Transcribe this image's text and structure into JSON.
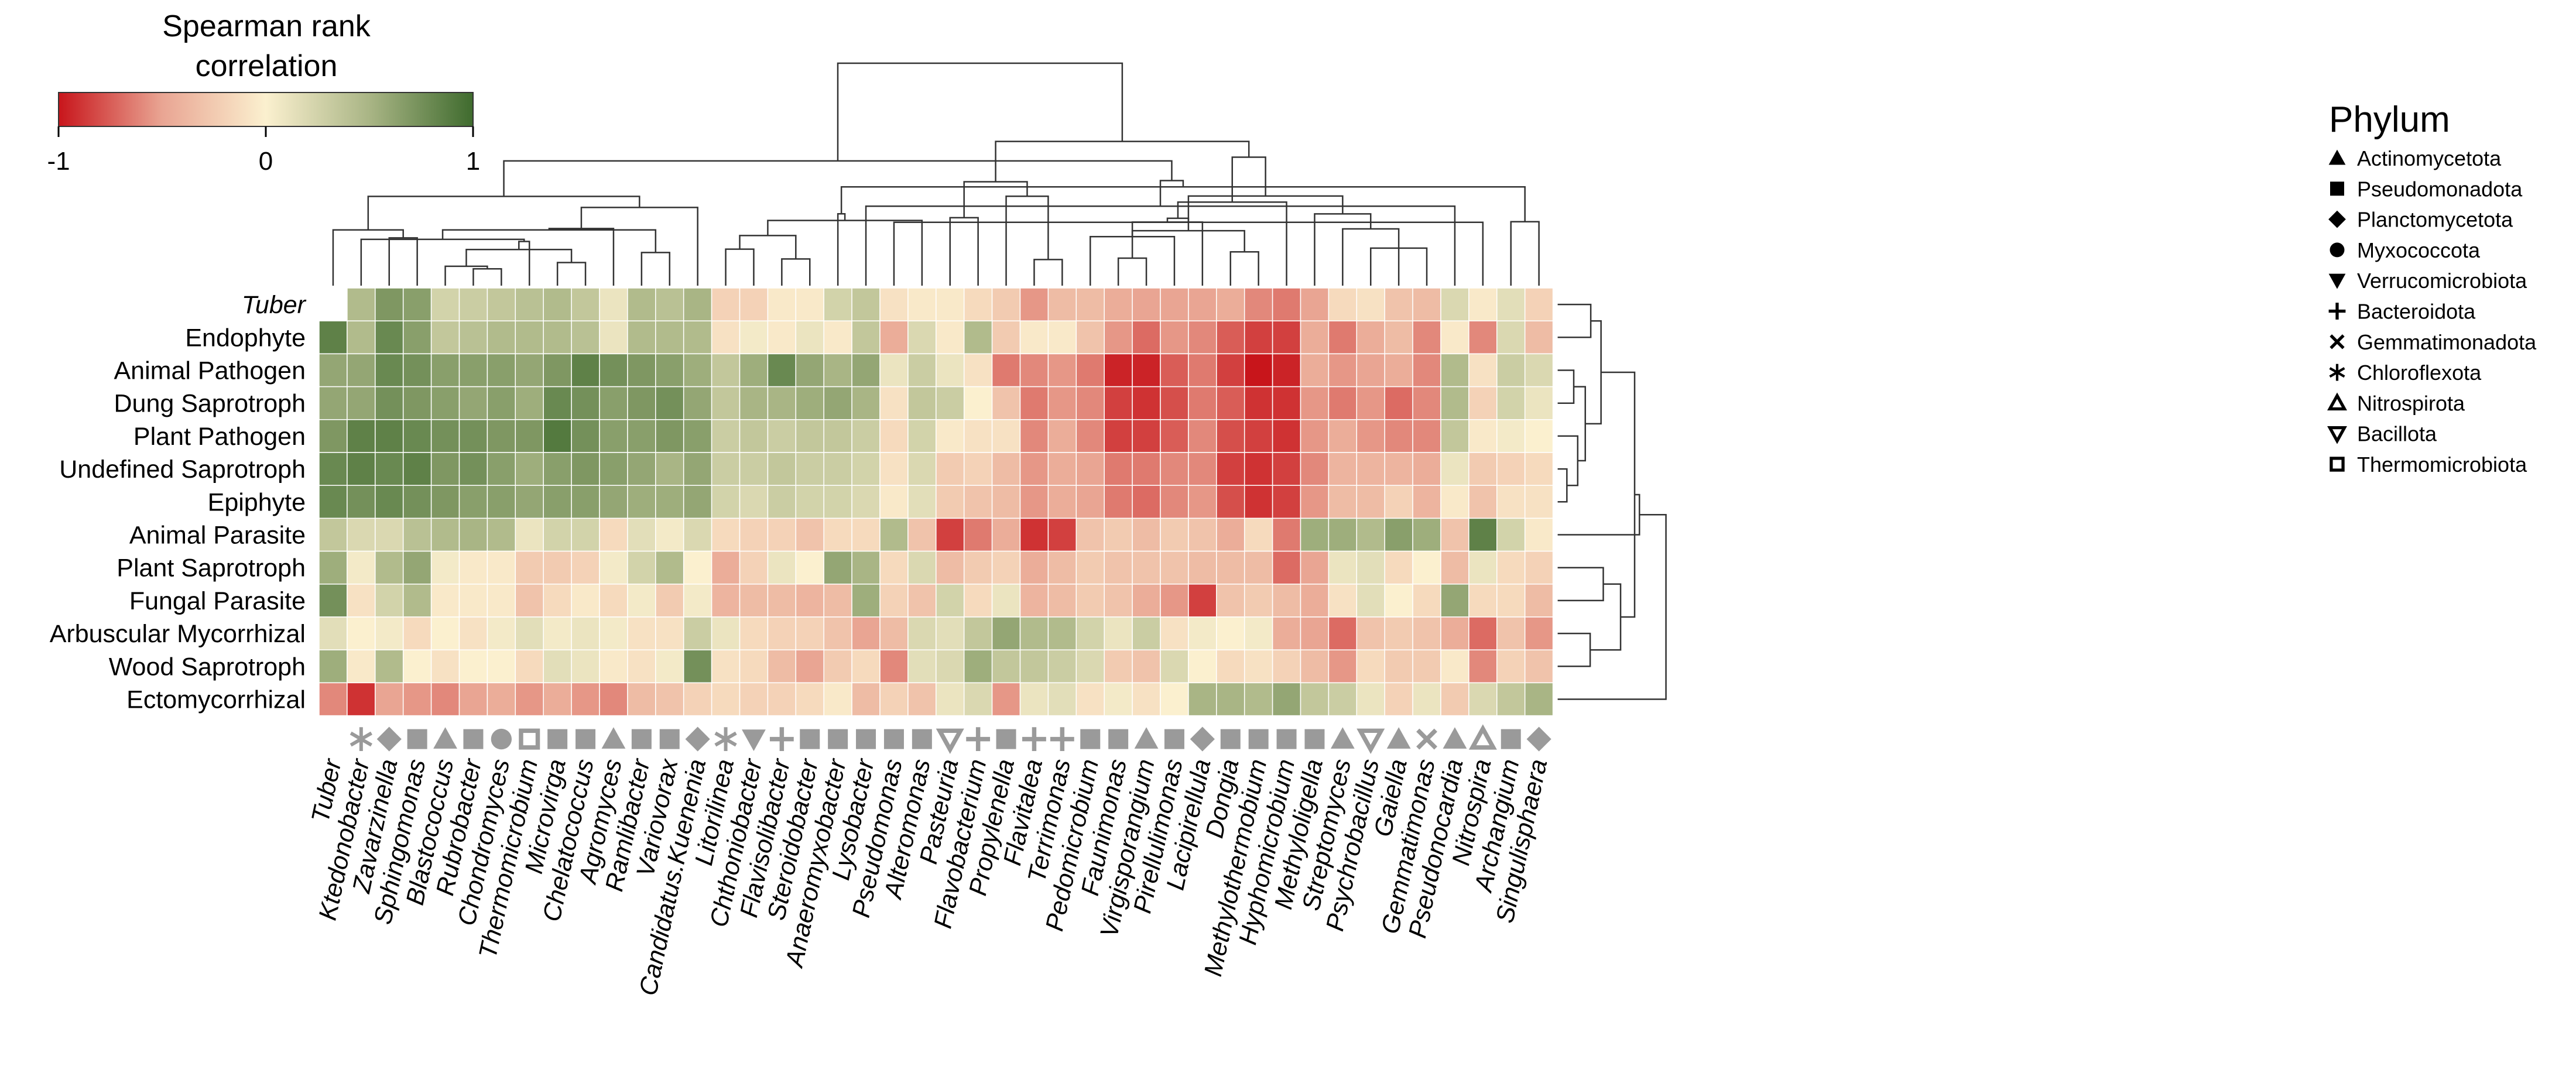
{
  "chart_data": {
    "type": "heatmap",
    "color_legend": {
      "title_line1": "Spearman rank",
      "title_line2": "correlation",
      "min_label": "-1",
      "mid_label": "0",
      "max_label": "1",
      "range": [
        -1,
        1
      ],
      "stops": [
        "#c8151b",
        "#e9a593",
        "#fbf0cf",
        "#a9b585",
        "#3f6b2e"
      ]
    },
    "phylum_legend": {
      "title": "Phylum",
      "entries": [
        {
          "symbol": "triangle-up",
          "label": "Actinomycetota"
        },
        {
          "symbol": "square",
          "label": "Pseudomonadota"
        },
        {
          "symbol": "diamond",
          "label": "Planctomycetota"
        },
        {
          "symbol": "circle",
          "label": "Myxococcota"
        },
        {
          "symbol": "triangle-down",
          "label": "Verrucomicrobiota"
        },
        {
          "symbol": "plus",
          "label": "Bacteroidota"
        },
        {
          "symbol": "cross",
          "label": "Gemmatimonadota"
        },
        {
          "symbol": "asterisk",
          "label": "Chloroflexota"
        },
        {
          "symbol": "triangle-up-open",
          "label": "Nitrospirota"
        },
        {
          "symbol": "triangle-down-open",
          "label": "Bacillota"
        },
        {
          "symbol": "square-open",
          "label": "Thermomicrobiota"
        }
      ]
    },
    "rows": [
      "Tuber",
      "Endophyte",
      "Animal Pathogen",
      "Dung Saprotroph",
      "Plant Pathogen",
      "Undefined Saprotroph",
      "Epiphyte",
      "Animal Parasite",
      "Plant Saprotroph",
      "Fungal Parasite",
      "Arbuscular Mycorrhizal",
      "Wood Saprotroph",
      "Ectomycorrhizal"
    ],
    "italic_rows": [
      "Tuber"
    ],
    "columns": [
      "Tuber",
      "Ktedonobacter",
      "Zavarzinella",
      "Sphingomonas",
      "Blastococcus",
      "Rubrobacter",
      "Chondromyces",
      "Thermomicrobium",
      "Microvirga",
      "Chelatococcus",
      "Agromyces",
      "Ramlibacter",
      "Variovorax",
      "Candidatus.Kuenenia",
      "Litorilinea",
      "Chthoniobacter",
      "Flavisolibacter",
      "Steroidobacter",
      "Anaeromyxobacter",
      "Lysobacter",
      "Pseudomonas",
      "Alteromonas",
      "Pasteuria",
      "Flavobacterium",
      "Propylenella",
      "Flavitalea",
      "Terrimonas",
      "Pedomicrobium",
      "Faunimonas",
      "Virgisporangium",
      "Pirellulimonas",
      "Lacipirellula",
      "Dongia",
      "Methylothermobium",
      "Hyphomicrobium",
      "Methyloligella",
      "Streptomyces",
      "Psychrobacillus",
      "Gaiella",
      "Gemmatimonas",
      "Pseudonocardia",
      "Nitrospira",
      "Archangium",
      "Singulisphaera"
    ],
    "column_symbols": [
      "none",
      "asterisk",
      "diamond",
      "square",
      "triangle-up",
      "square",
      "circle",
      "square-open",
      "square",
      "square",
      "triangle-up",
      "square",
      "square",
      "diamond",
      "asterisk",
      "triangle-down",
      "plus",
      "square",
      "square",
      "square",
      "square",
      "square",
      "triangle-down-open",
      "plus",
      "square",
      "plus",
      "plus",
      "square",
      "square",
      "triangle-up",
      "square",
      "diamond",
      "square",
      "square",
      "square",
      "square",
      "triangle-up",
      "triangle-down-open",
      "triangle-up",
      "cross",
      "triangle-up",
      "triangle-up-open",
      "square",
      "diamond"
    ],
    "values": [
      [
        null,
        0.45,
        0.7,
        0.65,
        0.25,
        0.3,
        0.35,
        0.4,
        0.45,
        0.35,
        0.1,
        0.45,
        0.4,
        0.5,
        -0.2,
        -0.2,
        -0.05,
        -0.05,
        0.25,
        0.35,
        -0.1,
        -0.05,
        -0.05,
        -0.15,
        -0.25,
        -0.55,
        -0.35,
        -0.35,
        -0.45,
        -0.5,
        -0.5,
        -0.5,
        -0.45,
        -0.6,
        -0.65,
        -0.5,
        -0.15,
        -0.1,
        -0.3,
        -0.35,
        0.2,
        -0.05,
        0.15,
        -0.2
      ],
      [
        0.85,
        0.45,
        0.8,
        0.65,
        0.35,
        0.4,
        0.45,
        0.45,
        0.45,
        0.4,
        0.1,
        0.45,
        0.45,
        0.45,
        -0.1,
        0.05,
        -0.05,
        0.1,
        -0.05,
        0.35,
        -0.45,
        0.2,
        -0.05,
        0.45,
        -0.25,
        -0.05,
        -0.05,
        -0.3,
        -0.55,
        -0.7,
        -0.55,
        -0.6,
        -0.75,
        -0.85,
        -0.85,
        -0.45,
        -0.65,
        -0.45,
        -0.35,
        -0.6,
        -0.05,
        -0.6,
        0.2,
        -0.35
      ],
      [
        0.6,
        0.6,
        0.8,
        0.75,
        0.65,
        0.65,
        0.65,
        0.6,
        0.7,
        0.85,
        0.75,
        0.7,
        0.65,
        0.55,
        0.35,
        0.55,
        0.8,
        0.6,
        0.5,
        0.6,
        0.1,
        0.3,
        0.1,
        -0.1,
        -0.65,
        -0.6,
        -0.55,
        -0.65,
        -0.95,
        -0.95,
        -0.75,
        -0.65,
        -0.85,
        -1.0,
        -0.95,
        -0.45,
        -0.55,
        -0.5,
        -0.45,
        -0.6,
        0.45,
        -0.1,
        0.3,
        0.2
      ],
      [
        0.6,
        0.6,
        0.75,
        0.7,
        0.65,
        0.6,
        0.65,
        0.55,
        0.8,
        0.75,
        0.65,
        0.7,
        0.75,
        0.6,
        0.35,
        0.5,
        0.5,
        0.55,
        0.6,
        0.5,
        -0.1,
        0.35,
        0.3,
        0.0,
        -0.3,
        -0.65,
        -0.55,
        -0.6,
        -0.85,
        -0.9,
        -0.8,
        -0.65,
        -0.75,
        -0.9,
        -0.9,
        -0.55,
        -0.65,
        -0.55,
        -0.7,
        -0.6,
        0.45,
        -0.2,
        0.25,
        0.1
      ],
      [
        0.7,
        0.85,
        0.85,
        0.8,
        0.75,
        0.75,
        0.7,
        0.7,
        0.9,
        0.75,
        0.65,
        0.65,
        0.7,
        0.65,
        0.3,
        0.35,
        0.3,
        0.35,
        0.35,
        0.3,
        -0.15,
        0.25,
        -0.05,
        -0.1,
        -0.1,
        -0.6,
        -0.45,
        -0.6,
        -0.85,
        -0.85,
        -0.75,
        -0.6,
        -0.8,
        -0.85,
        -0.9,
        -0.55,
        -0.45,
        -0.55,
        -0.6,
        -0.6,
        0.35,
        -0.05,
        0.05,
        0.0
      ],
      [
        0.8,
        0.85,
        0.8,
        0.85,
        0.7,
        0.75,
        0.65,
        0.55,
        0.65,
        0.7,
        0.65,
        0.6,
        0.5,
        0.6,
        0.3,
        0.3,
        0.35,
        0.3,
        0.3,
        0.25,
        -0.1,
        0.2,
        -0.25,
        -0.2,
        -0.35,
        -0.55,
        -0.45,
        -0.5,
        -0.65,
        -0.65,
        -0.6,
        -0.6,
        -0.85,
        -0.9,
        -0.85,
        -0.6,
        -0.4,
        -0.4,
        -0.4,
        -0.45,
        0.1,
        -0.25,
        -0.2,
        -0.15
      ],
      [
        0.8,
        0.75,
        0.8,
        0.75,
        0.7,
        0.65,
        0.65,
        0.6,
        0.65,
        0.65,
        0.6,
        0.55,
        0.55,
        0.6,
        0.25,
        0.2,
        0.3,
        0.25,
        0.25,
        0.2,
        -0.05,
        0.15,
        -0.25,
        -0.3,
        -0.35,
        -0.55,
        -0.45,
        -0.5,
        -0.65,
        -0.7,
        -0.6,
        -0.55,
        -0.8,
        -0.9,
        -0.85,
        -0.55,
        -0.35,
        -0.35,
        -0.2,
        -0.4,
        -0.05,
        -0.3,
        -0.1,
        -0.1
      ],
      [
        0.35,
        0.2,
        0.2,
        0.4,
        0.45,
        0.5,
        0.45,
        0.1,
        0.25,
        0.25,
        -0.15,
        0.15,
        0.05,
        0.2,
        -0.15,
        -0.2,
        -0.2,
        -0.3,
        -0.15,
        -0.15,
        0.45,
        -0.3,
        -0.85,
        -0.65,
        -0.45,
        -0.9,
        -0.85,
        -0.3,
        -0.25,
        -0.35,
        -0.25,
        -0.3,
        -0.45,
        -0.15,
        -0.65,
        0.55,
        0.55,
        0.45,
        0.65,
        0.55,
        -0.3,
        0.85,
        0.25,
        -0.05
      ],
      [
        0.55,
        0.05,
        0.45,
        0.6,
        0.05,
        -0.05,
        -0.05,
        -0.25,
        -0.25,
        -0.2,
        0.05,
        0.25,
        0.45,
        0.0,
        -0.45,
        -0.2,
        0.1,
        0.0,
        0.6,
        0.5,
        -0.15,
        0.2,
        -0.35,
        -0.25,
        -0.2,
        -0.45,
        -0.35,
        -0.25,
        -0.3,
        -0.3,
        -0.3,
        -0.35,
        -0.35,
        -0.35,
        -0.7,
        -0.5,
        0.1,
        0.15,
        -0.15,
        0.0,
        -0.35,
        0.1,
        -0.15,
        -0.2
      ],
      [
        0.75,
        -0.1,
        0.25,
        0.45,
        -0.05,
        -0.05,
        -0.05,
        -0.3,
        -0.15,
        -0.05,
        -0.15,
        0.05,
        -0.25,
        0.05,
        -0.4,
        -0.35,
        -0.35,
        -0.4,
        -0.35,
        0.55,
        -0.2,
        -0.3,
        0.25,
        -0.15,
        0.1,
        -0.4,
        -0.35,
        -0.25,
        -0.3,
        -0.45,
        -0.55,
        -0.85,
        -0.3,
        -0.25,
        -0.35,
        -0.45,
        -0.1,
        0.15,
        0.0,
        -0.15,
        0.6,
        -0.15,
        -0.15,
        -0.35
      ],
      [
        0.15,
        0.0,
        0.05,
        -0.15,
        0.0,
        -0.1,
        0.05,
        0.15,
        0.05,
        0.1,
        0.05,
        -0.1,
        -0.1,
        0.3,
        0.1,
        -0.15,
        -0.2,
        -0.2,
        -0.3,
        -0.5,
        -0.35,
        0.2,
        0.15,
        0.35,
        0.6,
        0.45,
        0.45,
        0.25,
        0.1,
        0.3,
        -0.1,
        0.05,
        0.0,
        0.05,
        -0.45,
        -0.5,
        -0.7,
        -0.3,
        -0.25,
        -0.3,
        -0.45,
        -0.7,
        -0.3,
        -0.55
      ],
      [
        0.55,
        -0.05,
        0.45,
        0.0,
        -0.1,
        0.0,
        0.0,
        -0.15,
        0.15,
        0.1,
        -0.05,
        -0.1,
        0.05,
        0.75,
        -0.1,
        -0.15,
        -0.35,
        -0.5,
        -0.25,
        -0.15,
        -0.6,
        0.15,
        0.2,
        0.55,
        0.35,
        0.35,
        0.3,
        0.2,
        -0.25,
        -0.3,
        0.2,
        0.0,
        -0.15,
        -0.1,
        -0.2,
        -0.35,
        -0.55,
        -0.15,
        -0.25,
        -0.25,
        -0.05,
        -0.6,
        -0.2,
        -0.3
      ],
      [
        -0.6,
        -0.9,
        -0.5,
        -0.55,
        -0.6,
        -0.5,
        -0.45,
        -0.55,
        -0.45,
        -0.55,
        -0.6,
        -0.35,
        -0.3,
        -0.2,
        -0.15,
        -0.2,
        -0.2,
        -0.15,
        -0.05,
        -0.35,
        -0.2,
        -0.3,
        0.1,
        0.2,
        -0.55,
        0.1,
        0.15,
        -0.1,
        0.05,
        -0.1,
        0.0,
        0.5,
        0.5,
        0.45,
        0.6,
        0.35,
        0.3,
        0.1,
        -0.2,
        0.1,
        -0.25,
        0.2,
        0.35,
        0.5
      ]
    ]
  }
}
